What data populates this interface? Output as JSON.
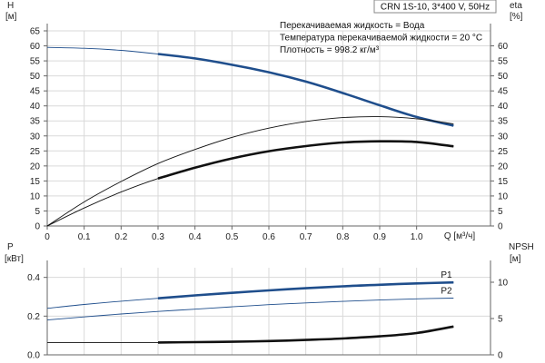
{
  "chart_data": [
    {
      "type": "line",
      "panel": "top",
      "title": "CRN 1S-10, 3*400 V, 50Hz",
      "info": [
        "Перекачиваемая жидкость = Вода",
        "Температура перекачиваемой жидкости = 20 °C",
        "Плотность = 998.2 кг/м³"
      ],
      "xlabel": "Q [м³/ч]",
      "xlim": [
        0,
        1.2
      ],
      "xticks": [
        "0",
        "0.1",
        "0.2",
        "0.3",
        "0.4",
        "0.5",
        "0.6",
        "0.7",
        "0.8",
        "0.9",
        "1.0"
      ],
      "ylabel_left": [
        "H",
        "[м]"
      ],
      "ylim_left": [
        0,
        65
      ],
      "yticks_left": [
        "0",
        "5",
        "10",
        "15",
        "20",
        "25",
        "30",
        "35",
        "40",
        "45",
        "50",
        "55",
        "60",
        "65"
      ],
      "ylabel_right": [
        "eta",
        "[%]"
      ],
      "ylim_right": [
        0,
        65
      ],
      "yticks_right": [
        "0",
        "5",
        "10",
        "15",
        "20",
        "25",
        "30",
        "35",
        "40",
        "45",
        "50",
        "55",
        "60"
      ],
      "grid": true,
      "series": [
        {
          "axis": "left",
          "color": "#1f4e8c",
          "bold_from": 0.3,
          "x": [
            0,
            0.1,
            0.2,
            0.3,
            0.4,
            0.5,
            0.6,
            0.7,
            0.8,
            0.9,
            1.0,
            1.1
          ],
          "y": [
            59.5,
            59.2,
            58.5,
            57.3,
            55.8,
            53.7,
            51.2,
            48.1,
            44.3,
            40.2,
            36.3,
            33.4
          ]
        },
        {
          "axis": "right",
          "color": "#111111",
          "x": [
            0,
            0.1,
            0.2,
            0.3,
            0.4,
            0.5,
            0.6,
            0.7,
            0.8,
            0.9,
            1.0,
            1.1
          ],
          "y": [
            0,
            8,
            14.8,
            20.8,
            25.5,
            29.5,
            32.6,
            34.8,
            36.1,
            36.4,
            35.7,
            34
          ]
        },
        {
          "axis": "right",
          "color": "#111111",
          "bold_from": 0.3,
          "x": [
            0,
            0.1,
            0.2,
            0.3,
            0.4,
            0.5,
            0.6,
            0.7,
            0.8,
            0.9,
            1.0,
            1.1
          ],
          "y": [
            0,
            6,
            11.3,
            15.8,
            19.4,
            22.5,
            24.9,
            26.6,
            27.8,
            28.2,
            28,
            26.5
          ]
        }
      ]
    },
    {
      "type": "line",
      "panel": "bottom",
      "xlim": [
        0,
        1.2
      ],
      "ylabel_left": [
        "P",
        "[кВт]"
      ],
      "ylim_left": [
        0,
        0.45
      ],
      "yticks_left": [
        "0.0",
        "0.2",
        "0.4"
      ],
      "ylabel_right": [
        "NPSH",
        "[м]"
      ],
      "ylim_right": [
        0,
        12
      ],
      "yticks_right": [
        "0",
        "5",
        "10"
      ],
      "grid": true,
      "series": [
        {
          "name": "P1",
          "axis": "left",
          "color": "#1f4e8c",
          "bold_from": 0.3,
          "x": [
            0,
            0.1,
            0.2,
            0.3,
            0.4,
            0.5,
            0.6,
            0.7,
            0.8,
            0.9,
            1.0,
            1.1
          ],
          "y": [
            0.24,
            0.26,
            0.277,
            0.292,
            0.307,
            0.32,
            0.333,
            0.344,
            0.354,
            0.362,
            0.369,
            0.374
          ]
        },
        {
          "name": "P2",
          "axis": "left",
          "color": "#1f4e8c",
          "x": [
            0,
            0.1,
            0.2,
            0.3,
            0.4,
            0.5,
            0.6,
            0.7,
            0.8,
            0.9,
            1.0,
            1.1
          ],
          "y": [
            0.18,
            0.196,
            0.211,
            0.224,
            0.236,
            0.248,
            0.259,
            0.268,
            0.276,
            0.283,
            0.289,
            0.293
          ]
        },
        {
          "axis": "right",
          "color": "#111111",
          "bold_from": 0.3,
          "x": [
            0,
            0.1,
            0.2,
            0.3,
            0.4,
            0.5,
            0.6,
            0.7,
            0.8,
            0.9,
            1.0,
            1.1
          ],
          "y": [
            1.7,
            1.7,
            1.7,
            1.7,
            1.75,
            1.8,
            1.9,
            2.05,
            2.25,
            2.55,
            3.0,
            3.9
          ]
        }
      ]
    }
  ]
}
